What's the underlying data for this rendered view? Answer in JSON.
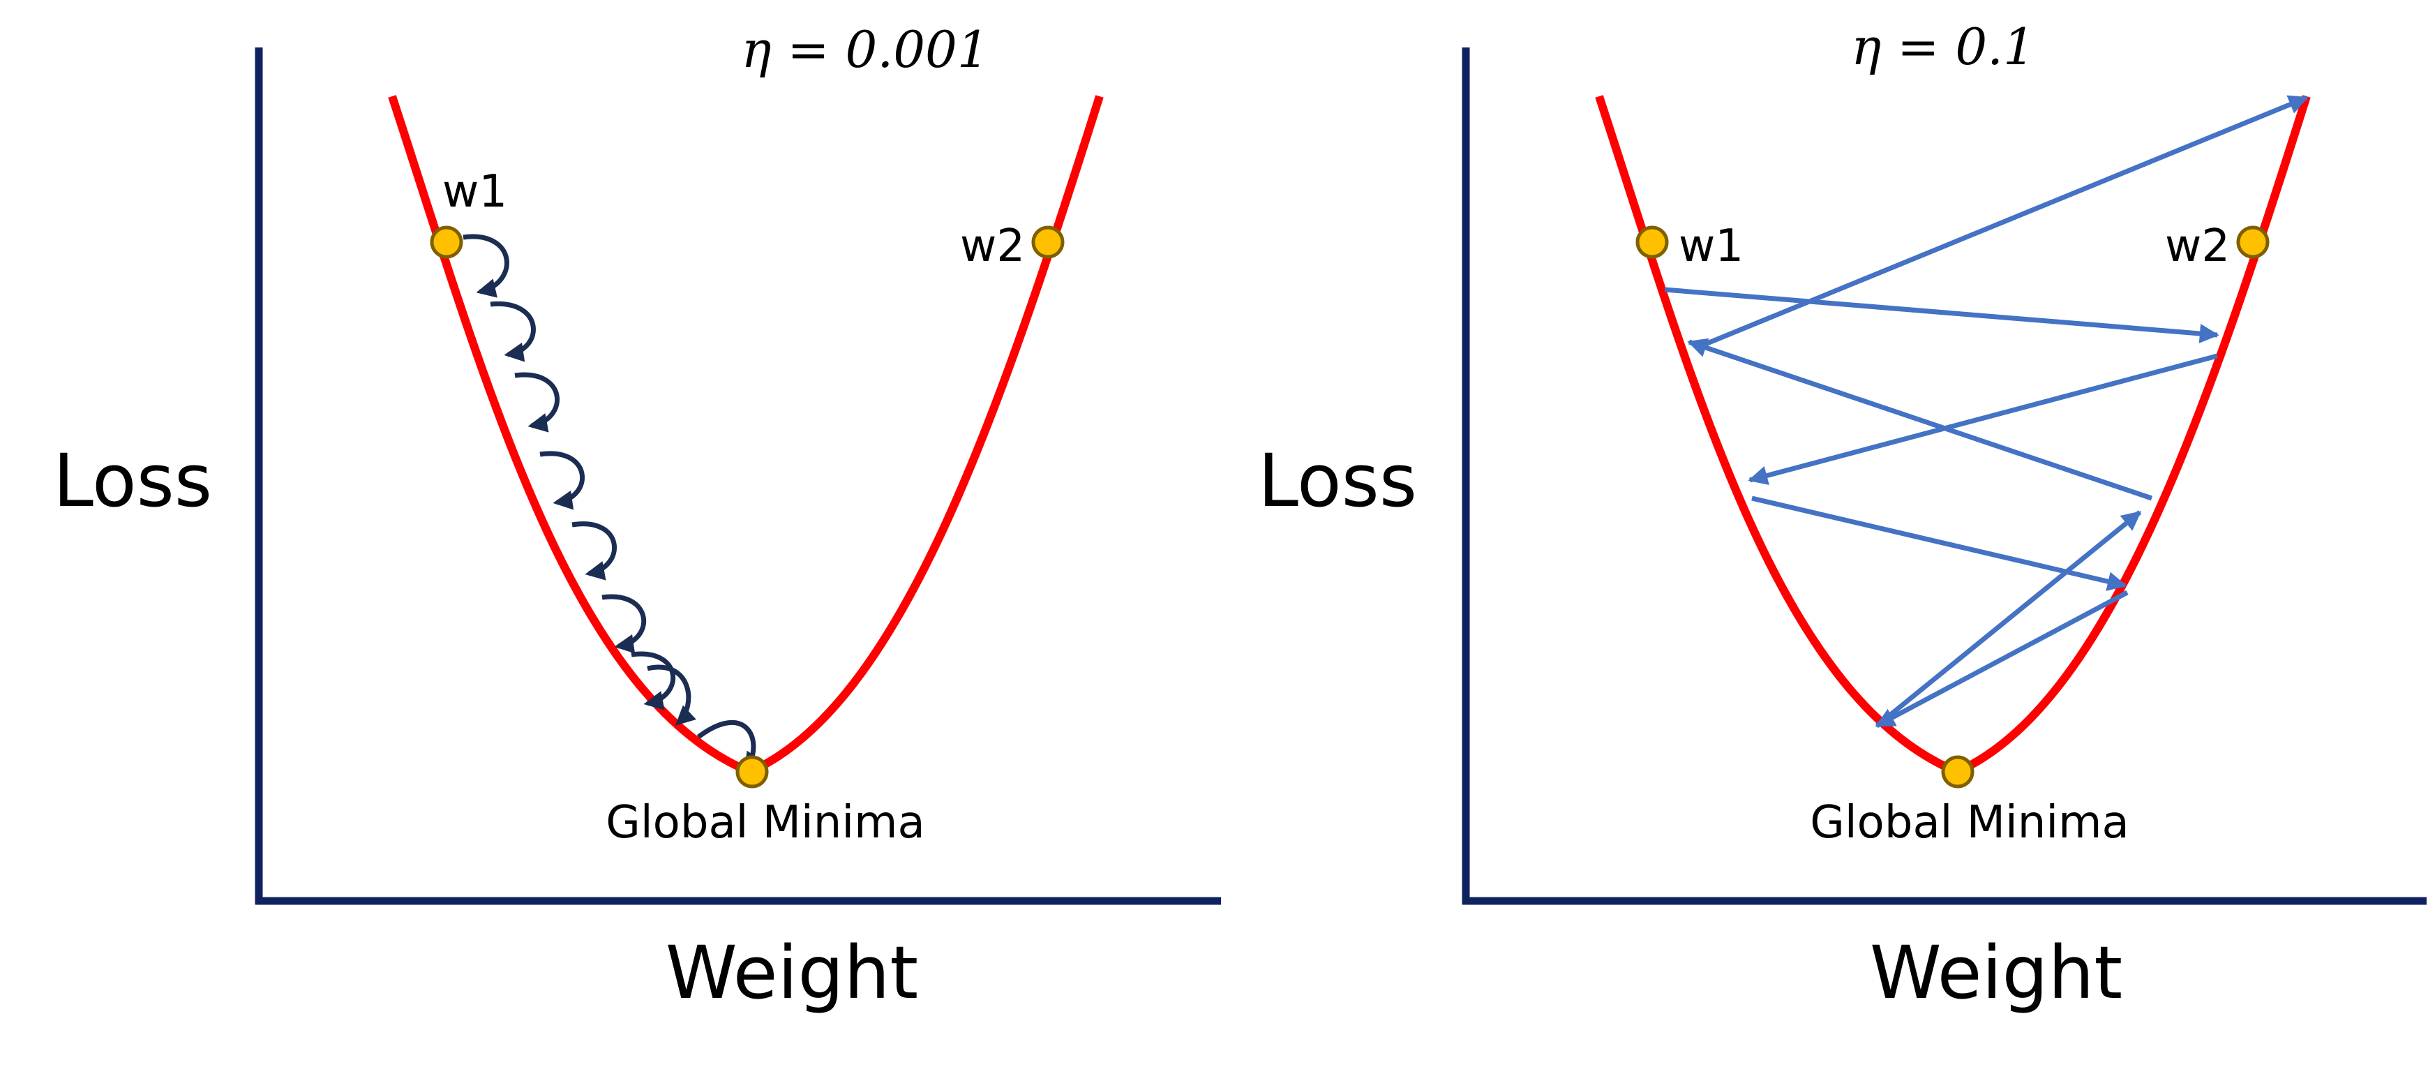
{
  "colors": {
    "axis": "#0f2260",
    "curve": "#ff0000",
    "point_fill": "#ffc000",
    "point_stroke": "#7f6000",
    "small_step_arrow": "#1b2d52",
    "large_step_arrow": "#4472c4"
  },
  "panels": [
    {
      "id": "left",
      "learning_rate_label": "η = 0.001",
      "y_axis_label": "Loss",
      "x_axis_label": "Weight",
      "start_point_label": "w1",
      "end_point_label": "w2",
      "minimum_label": "Global Minima",
      "step_count": 9,
      "behaviour": "small steps converging along curve"
    },
    {
      "id": "right",
      "learning_rate_label": "η = 0.1",
      "y_axis_label": "Loss",
      "x_axis_label": "Weight",
      "start_point_label": "w1",
      "end_point_label": "w2",
      "minimum_label": "Global Minima",
      "step_count": 8,
      "behaviour": "large steps oscillating and diverging"
    }
  ]
}
